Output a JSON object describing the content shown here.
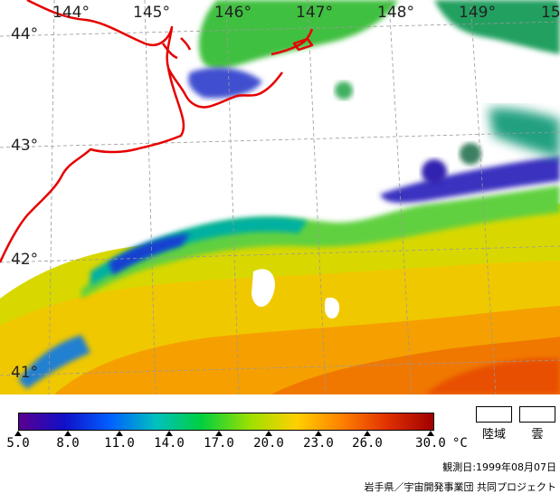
{
  "map": {
    "longitude_labels": [
      "144°",
      "145°",
      "146°",
      "147°",
      "148°",
      "149°",
      "15"
    ],
    "latitude_labels": [
      "44°",
      "43°",
      "42°",
      "41°"
    ],
    "coastline_color": "#e60000",
    "graticule_color": "#999999"
  },
  "legend": {
    "colorbar_stops": [
      "#5a0090",
      "#1010c8",
      "#0060ff",
      "#00c0c0",
      "#00d040",
      "#a0e000",
      "#ffd000",
      "#ff8000",
      "#e03000",
      "#a00000"
    ],
    "tick_labels": [
      "5.0",
      "8.0",
      "11.0",
      "14.0",
      "17.0",
      "20.0",
      "23.0",
      "26.0",
      "30.0"
    ],
    "unit": "°C",
    "land_label": "陸域",
    "cloud_label": "雲"
  },
  "observation_date": "観測日:1999年08月07日",
  "credit": "岩手県／宇宙開発事業団 共同プロジェクト"
}
